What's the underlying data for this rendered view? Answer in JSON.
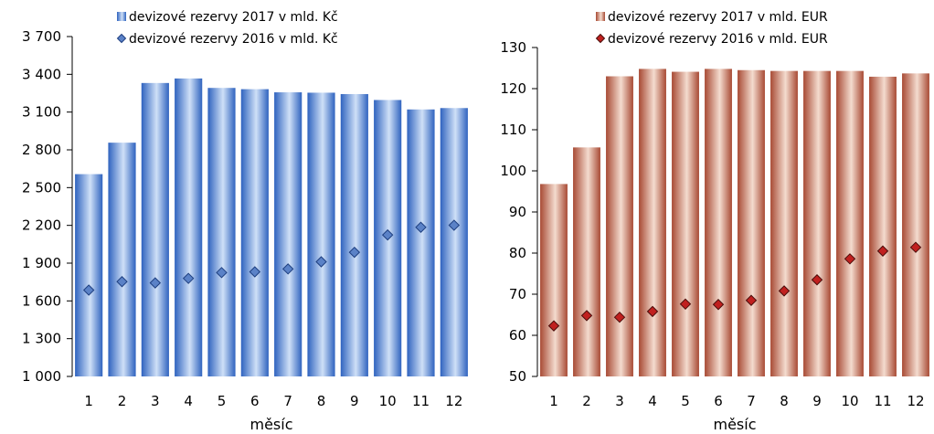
{
  "chart_data": [
    {
      "type": "bar",
      "categories": [
        "1",
        "2",
        "3",
        "4",
        "5",
        "6",
        "7",
        "8",
        "9",
        "10",
        "11",
        "12"
      ],
      "series": [
        {
          "name": "devizové rezervy 2017 v mld. Kč",
          "type": "bar",
          "values": [
            2607,
            2857,
            3331,
            3367,
            3292,
            3282,
            3257,
            3254,
            3243,
            3196,
            3121,
            3132
          ]
        },
        {
          "name": "devizové rezervy 2016 v mld. Kč",
          "type": "scatter",
          "values": [
            1686,
            1753,
            1743,
            1779,
            1825,
            1831,
            1854,
            1911,
            1986,
            2124,
            2185,
            2201
          ]
        }
      ],
      "xlabel": "měsíc",
      "ylabel": "",
      "ylim": [
        1000,
        3700
      ],
      "yticks": [
        1000,
        1300,
        1600,
        1900,
        2200,
        2500,
        2800,
        3100,
        3400,
        3700
      ],
      "ytick_labels": [
        "1 000",
        "1 300",
        "1 600",
        "1 900",
        "2 200",
        "2 500",
        "2 800",
        "3 100",
        "3 400",
        "3 700"
      ],
      "colors": {
        "bar_dark": "#2f63bf",
        "bar_light": "#cfe0f7",
        "marker": "#5b82c7",
        "marker_stroke": "#1e3f80"
      },
      "legend_position": "top"
    },
    {
      "type": "bar",
      "categories": [
        "1",
        "2",
        "3",
        "4",
        "5",
        "6",
        "7",
        "8",
        "9",
        "10",
        "11",
        "12"
      ],
      "series": [
        {
          "name": "devizové rezervy 2017 v mld. EUR",
          "type": "bar",
          "values": [
            96.8,
            105.7,
            123.0,
            124.8,
            124.1,
            124.8,
            124.5,
            124.3,
            124.3,
            124.3,
            122.9,
            123.7
          ]
        },
        {
          "name": "devizové rezervy 2016 v mld. EUR",
          "type": "scatter",
          "values": [
            62.3,
            64.8,
            64.4,
            65.8,
            67.6,
            67.5,
            68.5,
            70.8,
            73.5,
            78.6,
            80.5,
            81.4
          ]
        }
      ],
      "xlabel": "měsíc",
      "ylabel": "",
      "ylim": [
        50,
        130
      ],
      "yticks": [
        50,
        60,
        70,
        80,
        90,
        100,
        110,
        120,
        130
      ],
      "ytick_labels": [
        "50",
        "60",
        "70",
        "80",
        "90",
        "100",
        "110",
        "120",
        "130"
      ],
      "colors": {
        "bar_dark": "#a84a34",
        "bar_light": "#f4dccf",
        "marker": "#c0201f",
        "marker_stroke": "#4a0d0a"
      },
      "legend_position": "top"
    }
  ]
}
